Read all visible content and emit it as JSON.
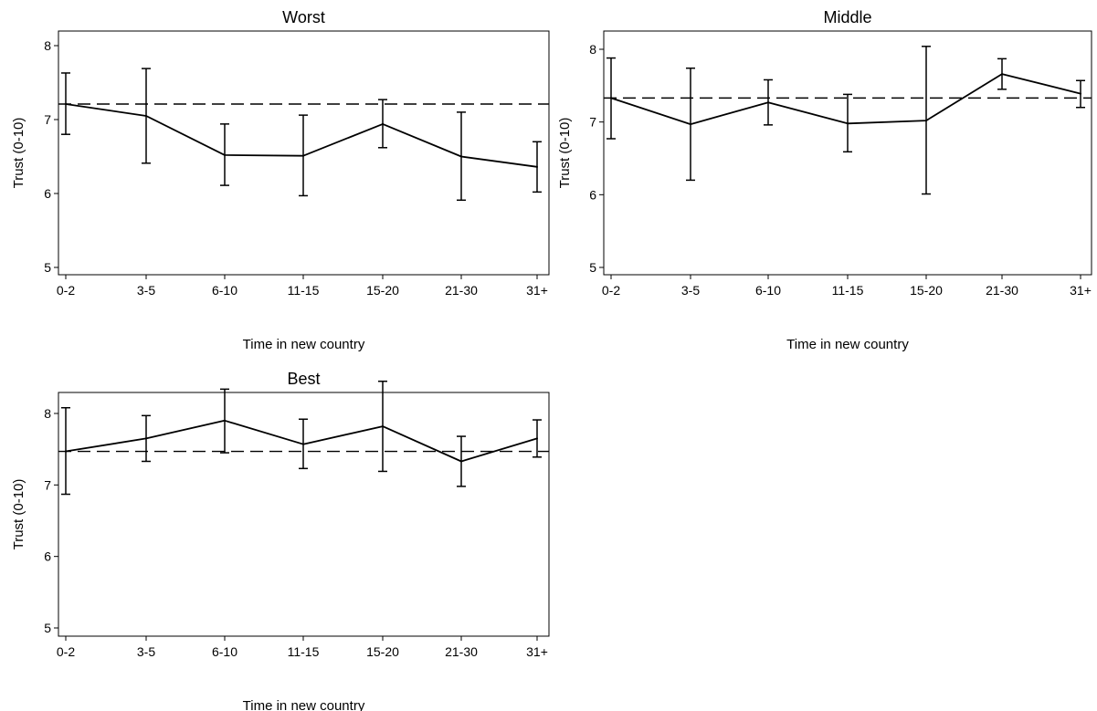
{
  "chart_data": [
    {
      "type": "line",
      "title": "Worst",
      "xlabel": "Time in new country",
      "ylabel": "Trust (0-10)",
      "categories": [
        "0-2",
        "3-5",
        "6-10",
        "11-15",
        "15-20",
        "21-30",
        "31+"
      ],
      "ylim": [
        4.95,
        8.2
      ],
      "yticks": [
        5,
        6,
        7,
        8
      ],
      "values": [
        7.21,
        7.05,
        6.52,
        6.51,
        6.94,
        6.5,
        6.36
      ],
      "ci_lower": [
        6.8,
        6.41,
        6.11,
        5.97,
        6.62,
        5.91,
        6.02
      ],
      "ci_upper": [
        7.63,
        7.69,
        6.94,
        7.06,
        7.27,
        7.1,
        6.7
      ],
      "reference_line": 7.21
    },
    {
      "type": "line",
      "title": "Middle",
      "xlabel": "Time in new country",
      "ylabel": "Trust (0-10)",
      "categories": [
        "0-2",
        "3-5",
        "6-10",
        "11-15",
        "15-20",
        "21-30",
        "31+"
      ],
      "ylim": [
        4.95,
        8.2
      ],
      "yticks": [
        5,
        6,
        7,
        8
      ],
      "values": [
        7.33,
        6.97,
        7.27,
        6.98,
        7.02,
        7.66,
        7.39
      ],
      "ci_lower": [
        6.77,
        6.2,
        6.96,
        6.59,
        6.01,
        7.45,
        7.2
      ],
      "ci_upper": [
        7.88,
        7.74,
        7.58,
        7.38,
        8.04,
        7.87,
        7.57
      ],
      "reference_line": 7.33
    },
    {
      "type": "line",
      "title": "Best",
      "xlabel": "Time in new country",
      "ylabel": "Trust (0-10)",
      "categories": [
        "0-2",
        "3-5",
        "6-10",
        "11-15",
        "15-20",
        "21-30",
        "31+"
      ],
      "ylim": [
        4.9,
        8.6
      ],
      "yticks": [
        5,
        6,
        7,
        8
      ],
      "values": [
        7.47,
        7.65,
        7.9,
        7.57,
        7.82,
        7.33,
        7.65
      ],
      "ci_lower": [
        6.87,
        7.33,
        7.45,
        7.23,
        7.19,
        6.98,
        7.39
      ],
      "ci_upper": [
        8.08,
        7.97,
        8.34,
        7.92,
        8.45,
        7.68,
        7.91
      ],
      "reference_line": 7.47
    }
  ]
}
